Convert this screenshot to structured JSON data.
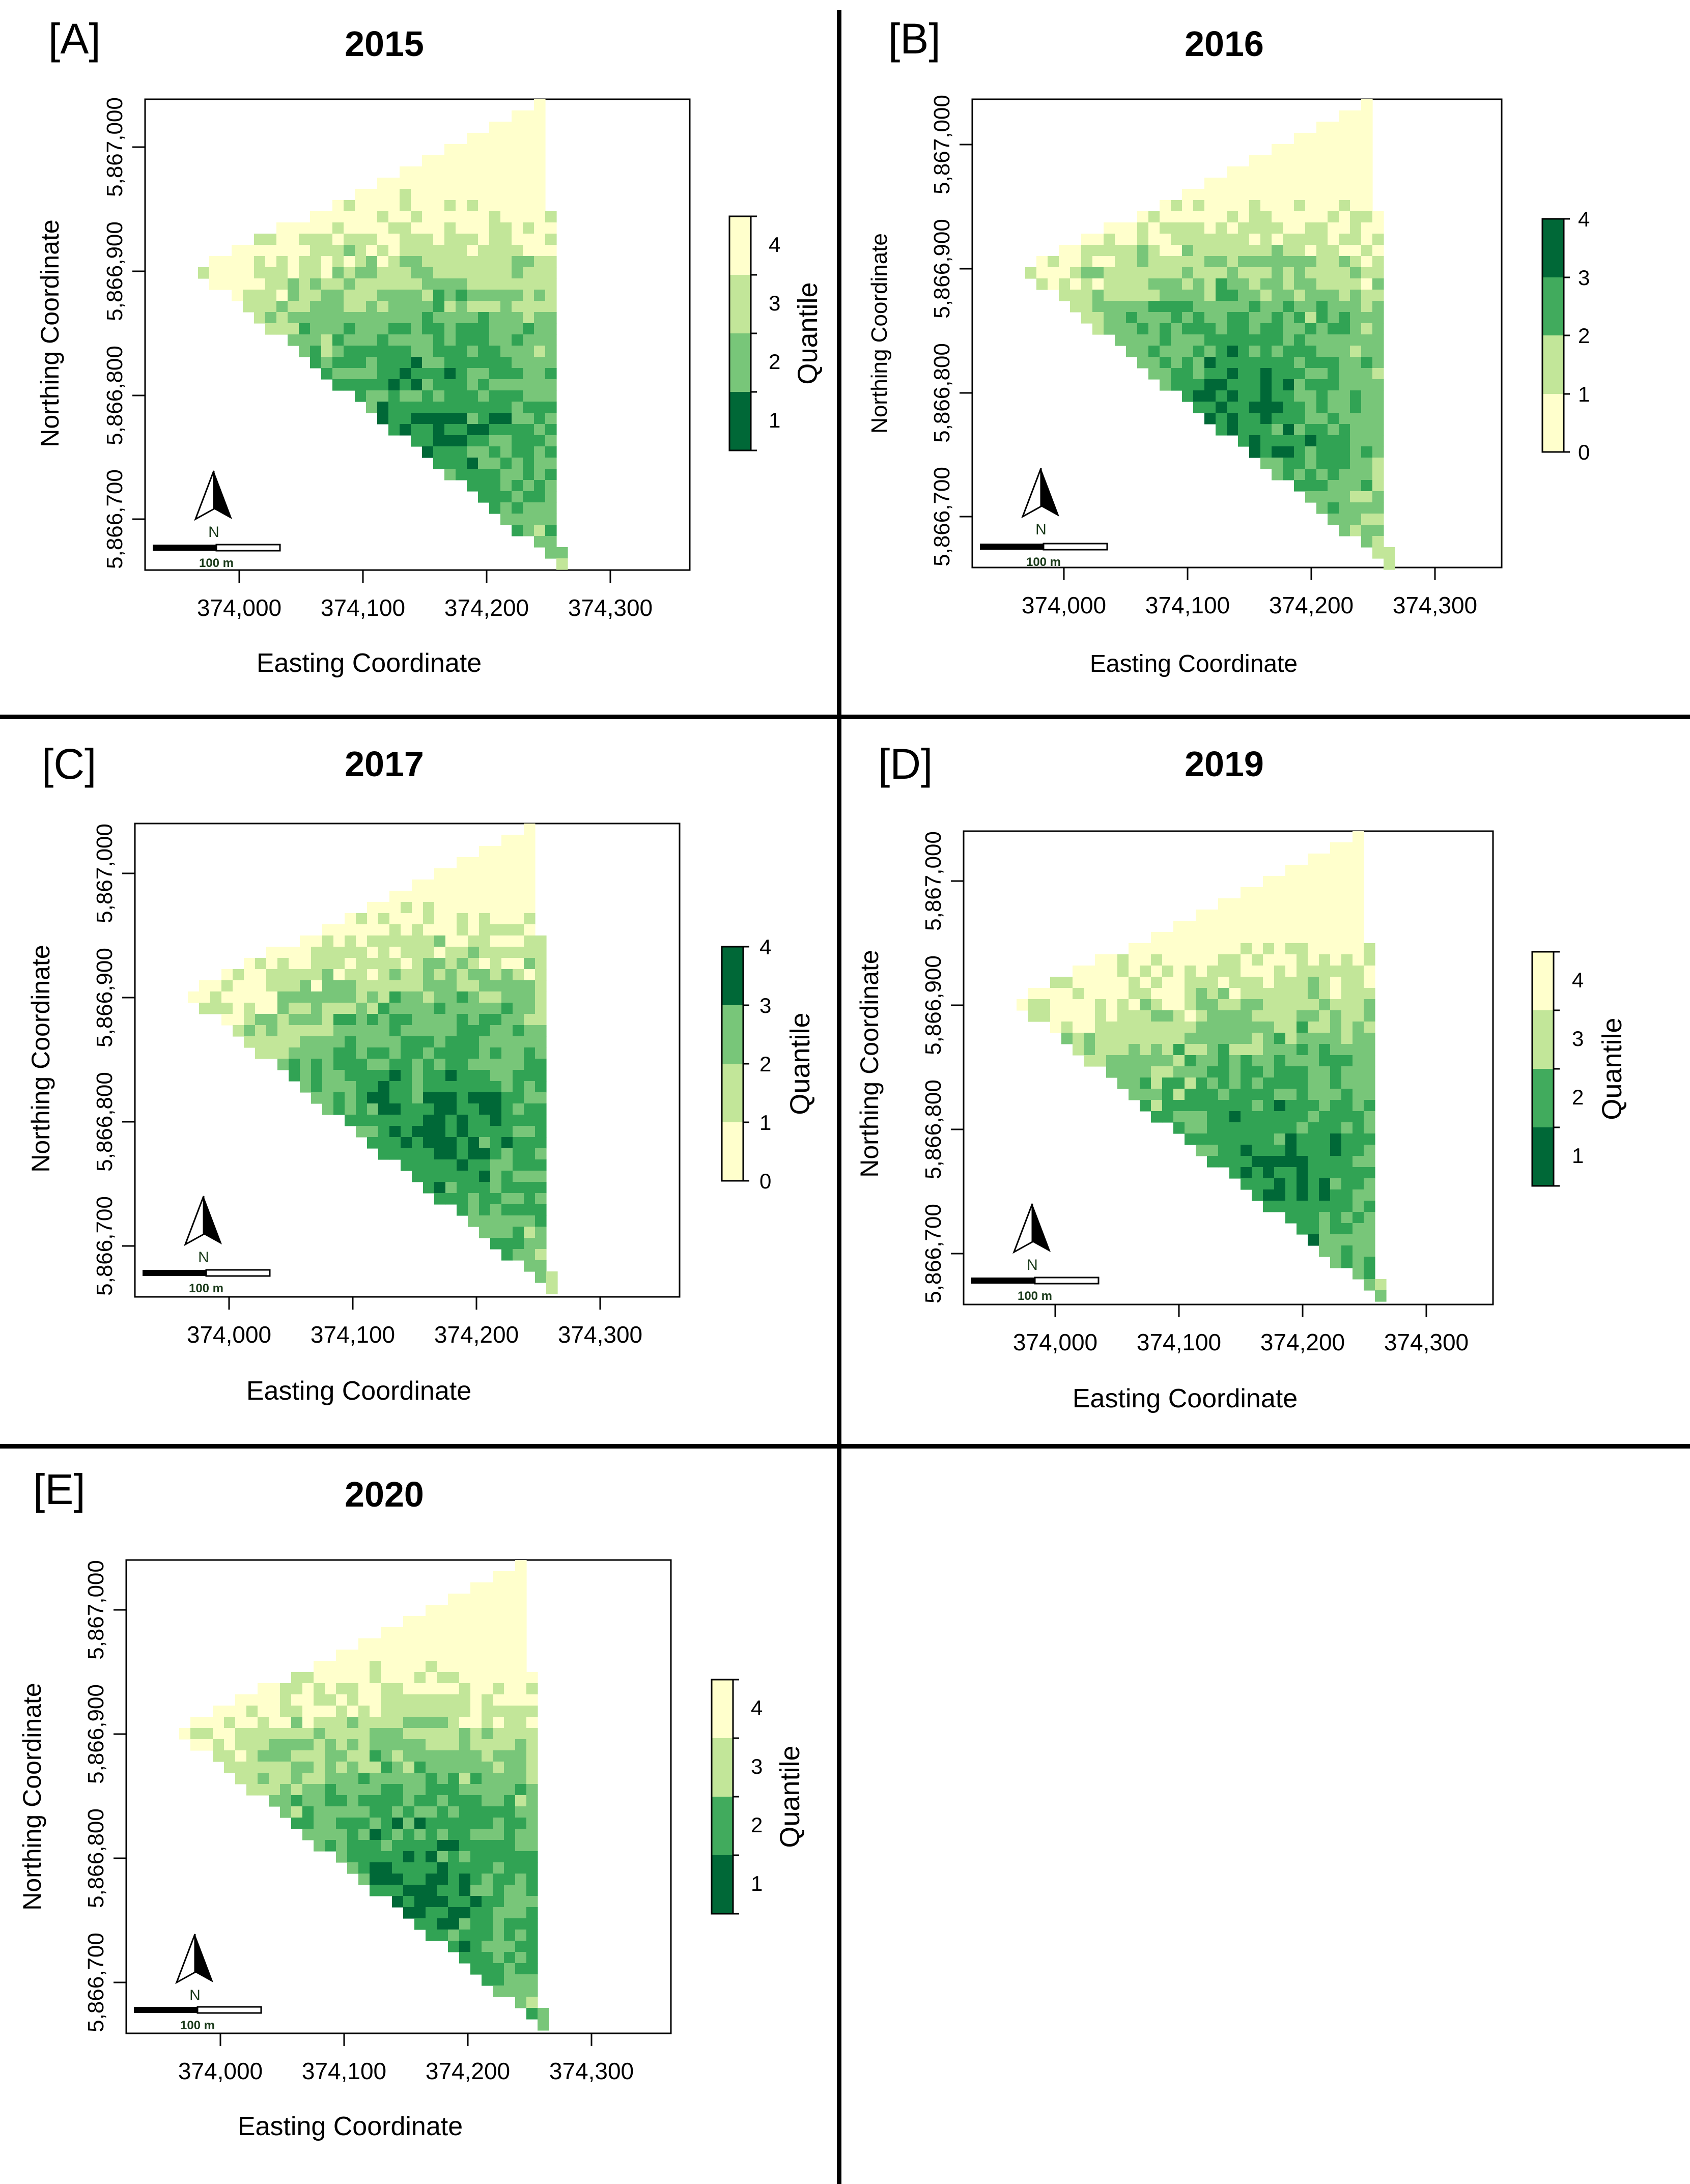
{
  "figure": {
    "x_axis_label": "Easting Coordinate",
    "y_axis_label": "Northing Coordinate",
    "x_ticks": [
      "374,000",
      "374,100",
      "374,200",
      "374,300"
    ],
    "y_ticks": [
      "5,866,700",
      "5,866,800",
      "5,866,900",
      "5,867,000"
    ],
    "scale_bar_label": "100 m",
    "north_label": "N",
    "palette": [
      "#ffffcc",
      "#c2e699",
      "#78c679",
      "#31a354",
      "#006837"
    ]
  },
  "panels": [
    {
      "tag": "[A]",
      "year": "2015",
      "legend_title": "Quantile",
      "legend_ticks": [
        "1",
        "2",
        "3",
        "4"
      ]
    },
    {
      "tag": "[B]",
      "year": "2016",
      "legend_title": "",
      "legend_ticks": [
        "0",
        "1",
        "2",
        "3",
        "4"
      ]
    },
    {
      "tag": "[C]",
      "year": "2017",
      "legend_title": "Quantile",
      "legend_ticks": [
        "0",
        "1",
        "2",
        "3",
        "4"
      ]
    },
    {
      "tag": "[D]",
      "year": "2019",
      "legend_title": "Quantile",
      "legend_ticks": [
        "1",
        "2",
        "3",
        "4"
      ]
    },
    {
      "tag": "[E]",
      "year": "2020",
      "legend_title": "Quantile",
      "legend_ticks": [
        "1",
        "2",
        "3",
        "4"
      ]
    }
  ]
}
